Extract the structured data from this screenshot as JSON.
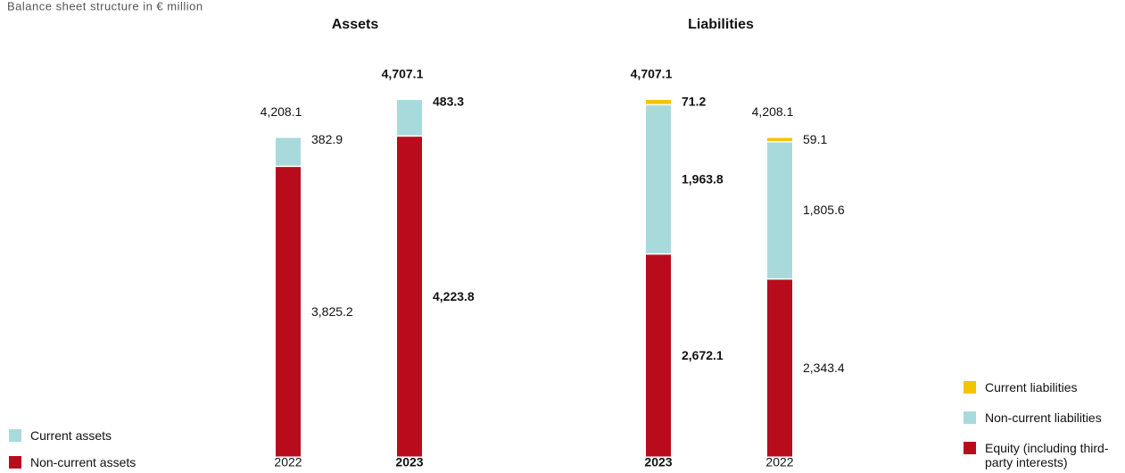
{
  "caption": "Balance sheet structure in € million",
  "chart_data": [
    {
      "type": "bar",
      "stacked": true,
      "title": "Assets",
      "categories": [
        "2022",
        "2023"
      ],
      "highlight_index": 1,
      "series": [
        {
          "name": "Non-current assets",
          "color": "#b80c1d",
          "values": [
            3825.2,
            4223.8
          ],
          "value_labels": [
            "3,825.2",
            "4,223.8"
          ]
        },
        {
          "name": "Current assets",
          "color": "#a8dadc",
          "values": [
            382.9,
            483.3
          ],
          "value_labels": [
            "382.9",
            "483.3"
          ]
        }
      ],
      "totals": [
        4208.1,
        4707.1
      ],
      "total_labels": [
        "4,208.1",
        "4,707.1"
      ],
      "legend": "lower left"
    },
    {
      "type": "bar",
      "stacked": true,
      "title": "Liabilities",
      "categories": [
        "2023",
        "2022"
      ],
      "highlight_index": 0,
      "series": [
        {
          "name": "Equity (including third-party interests)",
          "color": "#b80c1d",
          "values": [
            2672.1,
            2343.4
          ],
          "value_labels": [
            "2,672.1",
            "2,343.4"
          ]
        },
        {
          "name": "Non-current liabilities",
          "color": "#a8dadc",
          "values": [
            1963.8,
            1805.6
          ],
          "value_labels": [
            "1,963.8",
            "1,805.6"
          ]
        },
        {
          "name": "Current liabilities",
          "color": "#f5c400",
          "values": [
            71.2,
            59.1
          ],
          "value_labels": [
            "71.2",
            "59.1"
          ]
        }
      ],
      "totals": [
        4707.1,
        4208.1
      ],
      "total_labels": [
        "4,707.1",
        "4,208.1"
      ],
      "legend": "lower right"
    }
  ]
}
